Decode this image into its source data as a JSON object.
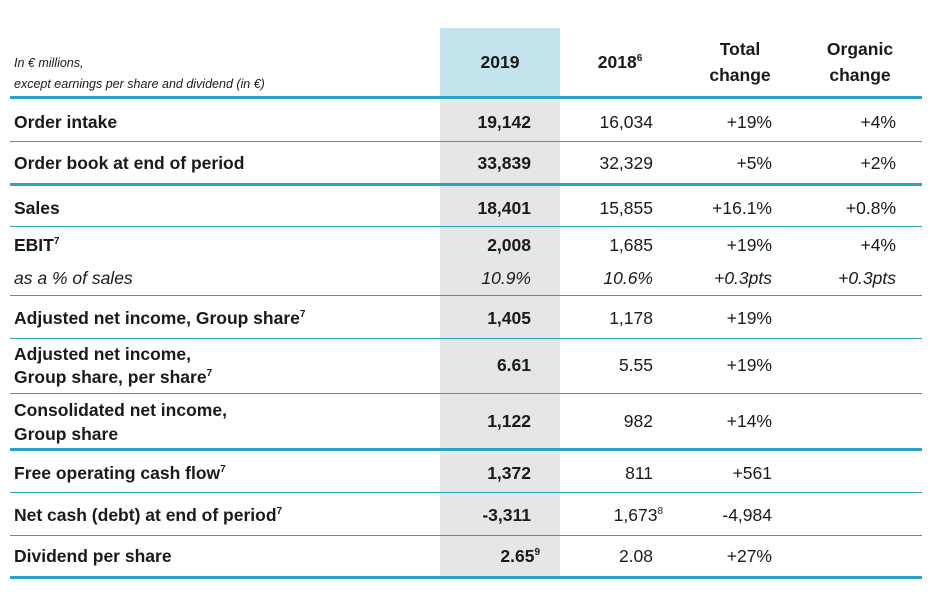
{
  "header": {
    "units_line1": "In € millions,",
    "units_line2": "except earnings per share and dividend (in €)",
    "col_2019": "2019",
    "col_2018": "2018",
    "col_2018_note": "6",
    "col_total_1": "Total",
    "col_total_2": "change",
    "col_organic_1": "Organic",
    "col_organic_2": "change"
  },
  "rows": {
    "order_intake": {
      "label": "Order intake",
      "v2019": "19,142",
      "v2018": "16,034",
      "total": "+19%",
      "organic": "+4%"
    },
    "order_book": {
      "label": "Order book at end of period",
      "v2019": "33,839",
      "v2018": "32,329",
      "total": "+5%",
      "organic": "+2%"
    },
    "sales": {
      "label": "Sales",
      "v2019": "18,401",
      "v2018": "15,855",
      "total": "+16.1%",
      "organic": "+0.8%"
    },
    "ebit": {
      "label": "EBIT",
      "note": "7",
      "v2019": "2,008",
      "v2018": "1,685",
      "total": "+19%",
      "organic": "+4%"
    },
    "ebit_pct": {
      "label": "as a % of sales",
      "v2019": "10.9%",
      "v2018": "10.6%",
      "total": "+0.3pts",
      "organic": "+0.3pts"
    },
    "adj_net_income": {
      "label": "Adjusted net income, Group share",
      "note": "7",
      "v2019": "1,405",
      "v2018": "1,178",
      "total": "+19%"
    },
    "adj_net_income_ps": {
      "label_1": "Adjusted net income,",
      "label_2": "Group share, per share",
      "note": "7",
      "v2019": "6.61",
      "v2018": "5.55",
      "total": "+19%"
    },
    "cons_net_income": {
      "label_1": "Consolidated net income,",
      "label_2": "Group share",
      "v2019": "1,122",
      "v2018": "982",
      "total": "+14%"
    },
    "fcf": {
      "label": "Free operating cash flow",
      "note": "7",
      "v2019": "1,372",
      "v2018": "811",
      "total": "+561"
    },
    "net_cash": {
      "label": "Net cash (debt) at end of period",
      "note": "7",
      "v2019": "-3,311",
      "v2018": "1,673",
      "v2018_note": "8",
      "total": "-4,984"
    },
    "dividend": {
      "label": "Dividend per share",
      "v2019": "2.65",
      "v2019_note": "9",
      "v2018": "2.08",
      "total": "+27%"
    }
  },
  "colors": {
    "accent_line": "#2aa3c7",
    "header_highlight": "#c3e4ec",
    "column_highlight": "#e6e6e6"
  }
}
